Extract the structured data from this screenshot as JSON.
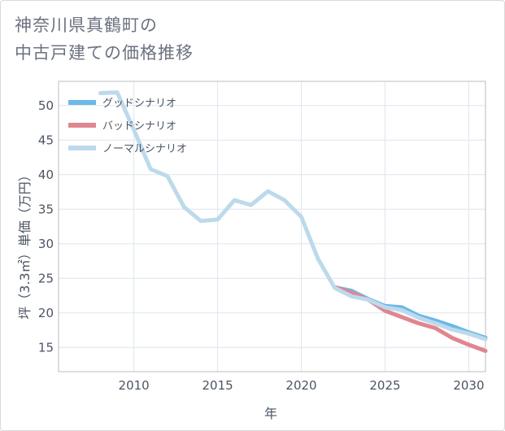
{
  "title_lines": [
    "神奈川県真鶴町の",
    "中古戸建ての価格推移"
  ],
  "chart_data": {
    "type": "line",
    "title": "神奈川県真鶴町の中古戸建ての価格推移",
    "xlabel": "年",
    "ylabel": "坪（3.3㎡）単価（万円）",
    "xlim": [
      2005.5,
      2031
    ],
    "ylim": [
      11.5,
      53.5
    ],
    "xticks": [
      2010,
      2015,
      2020,
      2025,
      2030
    ],
    "yticks": [
      15,
      20,
      25,
      30,
      35,
      40,
      45,
      50
    ],
    "grid": true,
    "legend": "top-left",
    "series": [
      {
        "name": "グッドシナリオ",
        "color": "#6cb8e6",
        "x": [
          2022,
          2023,
          2024,
          2025,
          2026,
          2027,
          2028,
          2029,
          2030,
          2031
        ],
        "y": [
          23.7,
          23.2,
          22.0,
          21.0,
          20.8,
          19.6,
          18.9,
          18.1,
          17.2,
          16.4
        ]
      },
      {
        "name": "バッドシナリオ",
        "color": "#e0868f",
        "x": [
          2022,
          2023,
          2024,
          2025,
          2026,
          2027,
          2028,
          2029,
          2030,
          2031
        ],
        "y": [
          23.7,
          22.9,
          21.9,
          20.3,
          19.4,
          18.5,
          17.8,
          16.4,
          15.4,
          14.5
        ]
      },
      {
        "name": "ノーマルシナリオ",
        "color": "#bcdaeb",
        "x": [
          2008,
          2009,
          2010,
          2011,
          2012,
          2013,
          2014,
          2015,
          2016,
          2017,
          2018,
          2019,
          2020,
          2021,
          2022,
          2023,
          2024,
          2025,
          2026,
          2027,
          2028,
          2029,
          2030,
          2031
        ],
        "y": [
          51.8,
          51.9,
          46.5,
          40.8,
          39.8,
          35.3,
          33.3,
          33.5,
          36.3,
          35.6,
          37.6,
          36.3,
          33.9,
          27.8,
          23.6,
          22.4,
          21.9,
          20.8,
          20.4,
          19.3,
          18.5,
          17.6,
          17.0,
          16.2
        ]
      }
    ]
  }
}
